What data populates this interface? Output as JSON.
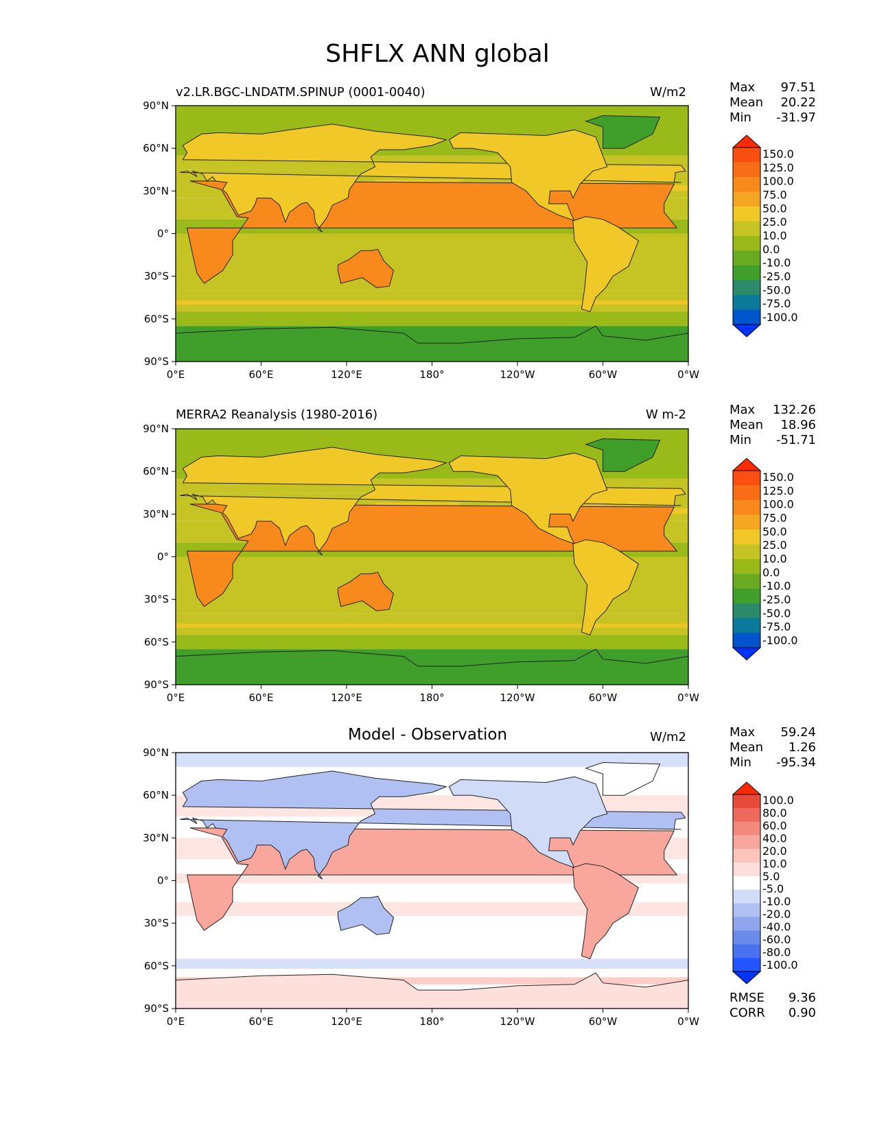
{
  "title": "SHFLX ANN global",
  "panels": [
    {
      "title": "v2.LR.BGC-LNDATM.SPINUP (0001-0040)",
      "units": "W/m2",
      "stats": {
        "max_label": "Max",
        "max": "97.51",
        "mean_label": "Mean",
        "mean": "20.22",
        "min_label": "Min",
        "min": "-31.97"
      },
      "colorbar": {
        "labels": [
          "150.0",
          "125.0",
          "100.0",
          "75.0",
          "50.0",
          "25.0",
          "10.0",
          "0.0",
          "-10.0",
          "-25.0",
          "-50.0",
          "-75.0",
          "-100.0"
        ]
      }
    },
    {
      "title": "MERRA2 Reanalysis (1980-2016)",
      "units": "W m-2",
      "stats": {
        "max_label": "Max",
        "max": "132.26",
        "mean_label": "Mean",
        "mean": "18.96",
        "min_label": "Min",
        "min": "-51.71"
      },
      "colorbar": {
        "labels": [
          "150.0",
          "125.0",
          "100.0",
          "75.0",
          "50.0",
          "25.0",
          "10.0",
          "0.0",
          "-10.0",
          "-25.0",
          "-50.0",
          "-75.0",
          "-100.0"
        ]
      }
    },
    {
      "title": "Model - Observation",
      "units": "W/m2",
      "stats": {
        "max_label": "Max",
        "max": "59.24",
        "mean_label": "Mean",
        "mean": "1.26",
        "min_label": "Min",
        "min": "-95.34"
      },
      "colorbar": {
        "labels": [
          "100.0",
          "80.0",
          "60.0",
          "40.0",
          "20.0",
          "10.0",
          "5.0",
          "-5.0",
          "-10.0",
          "-20.0",
          "-40.0",
          "-60.0",
          "-80.0",
          "-100.0"
        ]
      },
      "metrics": {
        "rmse_label": "RMSE",
        "rmse": "9.36",
        "corr_label": "CORR",
        "corr": "0.90"
      }
    }
  ],
  "axes": {
    "lon_ticks": [
      "0°E",
      "60°E",
      "120°E",
      "180°",
      "120°W",
      "60°W",
      "0°W"
    ],
    "lat_ticks": [
      "90°N",
      "60°N",
      "30°N",
      "0°",
      "30°S",
      "60°S",
      "90°S"
    ]
  },
  "colors": {
    "abs_scale": [
      "#0033ff",
      "#0055cc",
      "#0c7a9a",
      "#2a8a6a",
      "#3f9f2a",
      "#6aaa22",
      "#9aba1a",
      "#c6c425",
      "#f0c827",
      "#f5a623",
      "#f7891d",
      "#f86e16",
      "#fa4f10",
      "#ff2a00"
    ],
    "diff_scale": [
      "#0033ff",
      "#2255ff",
      "#4a72f0",
      "#6b8be8",
      "#8fa6ec",
      "#b0c0f2",
      "#d0dbf8",
      "#ffffff",
      "#fde0dc",
      "#fcc4bc",
      "#f9a79c",
      "#f48a7e",
      "#ee6a5c",
      "#e84a3a",
      "#ff2a00"
    ],
    "ocean_abs": "#c6c425",
    "land_abs": "#f0c827",
    "polar_abs": "#3f9f2a",
    "ocean_diff": "#ffffff"
  }
}
